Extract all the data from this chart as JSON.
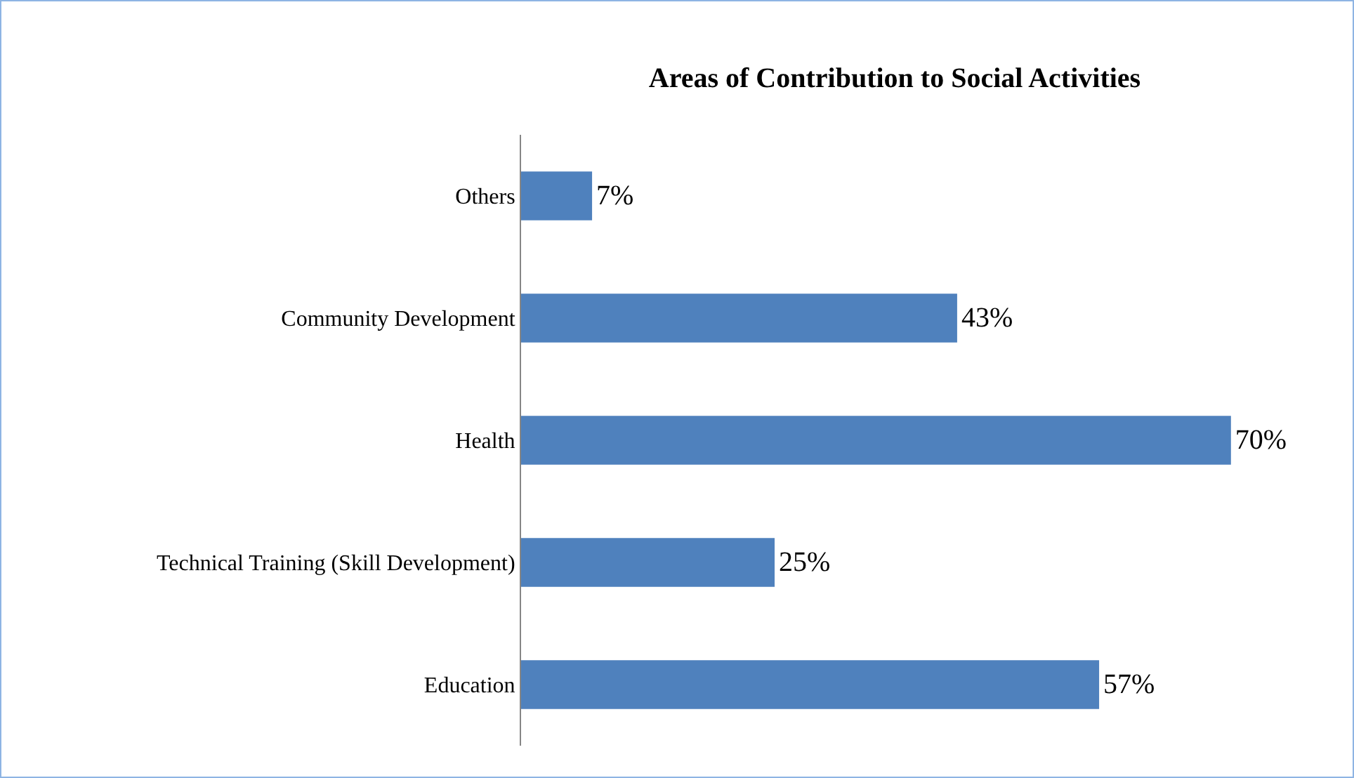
{
  "chart_data": {
    "type": "bar",
    "orientation": "horizontal",
    "title": "Areas of Contribution to Social Activities",
    "categories": [
      "Others",
      "Community Development",
      "Health",
      "Technical Training (Skill Development)",
      "Education"
    ],
    "values": [
      7,
      43,
      70,
      25,
      57
    ],
    "value_labels": [
      "7%",
      "43%",
      "70%",
      "25%",
      "57%"
    ],
    "color": "#4f81bd",
    "tick_labels": "y"
  }
}
